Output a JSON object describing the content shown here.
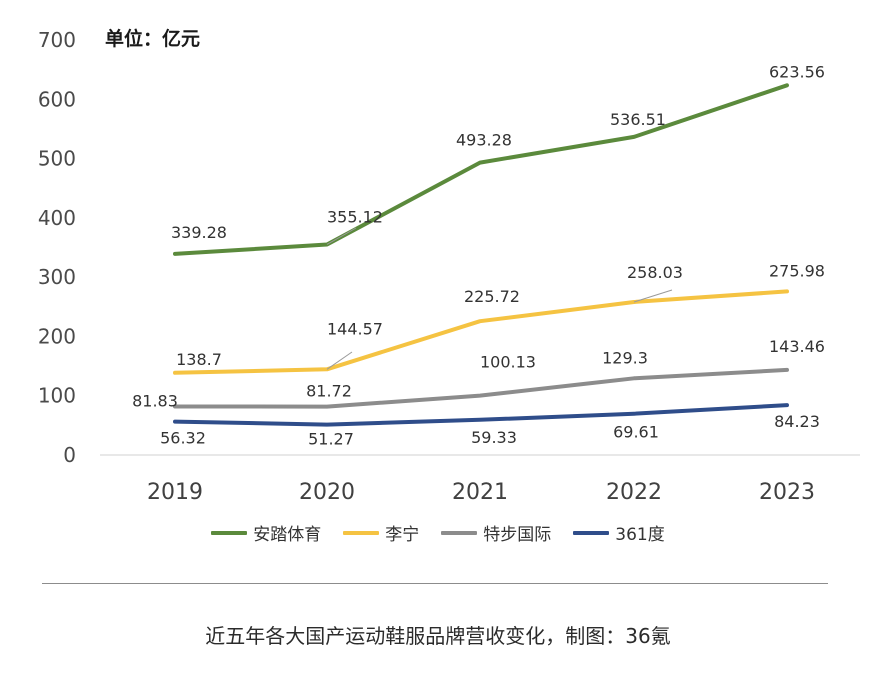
{
  "chart_data": {
    "type": "line",
    "unit": "单位：亿元",
    "categories": [
      "2019",
      "2020",
      "2021",
      "2022",
      "2023"
    ],
    "ylim": [
      0,
      700
    ],
    "yticks": [
      0,
      100,
      200,
      300,
      400,
      500,
      600,
      700
    ],
    "series": [
      {
        "name": "安踏体育",
        "color": "#5b8a3c",
        "values": [
          339.28,
          355.12,
          493.28,
          536.51,
          623.56
        ],
        "labels": [
          "339.28",
          "355.12",
          "493.28",
          "536.51",
          "623.56"
        ]
      },
      {
        "name": "李宁",
        "color": "#f5c342",
        "values": [
          138.7,
          144.57,
          225.72,
          258.03,
          275.98
        ],
        "labels": [
          "138.7",
          "144.57",
          "225.72",
          "258.03",
          "275.98"
        ]
      },
      {
        "name": "特步国际",
        "color": "#8c8c8c",
        "values": [
          81.83,
          81.72,
          100.13,
          129.3,
          143.46
        ],
        "labels": [
          "81.83",
          "81.72",
          "100.13",
          "129.3",
          "143.46"
        ]
      },
      {
        "name": "361度",
        "color": "#2f4d8a",
        "values": [
          56.32,
          51.27,
          59.33,
          69.61,
          84.23
        ],
        "labels": [
          "56.32",
          "51.27",
          "59.33",
          "69.61",
          "84.23"
        ]
      }
    ]
  },
  "caption": "近五年各大国产运动鞋服品牌营收变化，制图：36氪"
}
